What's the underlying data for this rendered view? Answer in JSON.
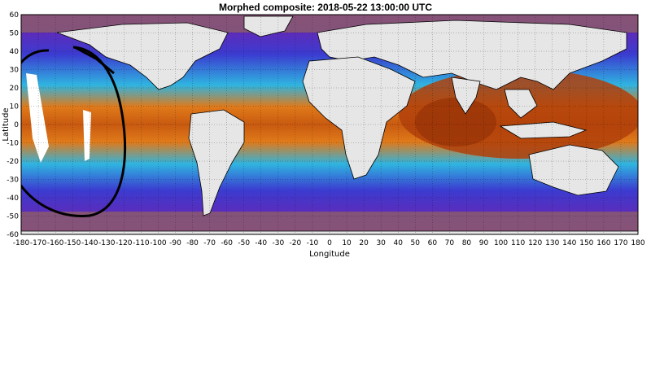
{
  "title": "Morphed composite: 2018-05-22 13:00:00 UTC",
  "xlabel": "Longitude",
  "ylabel": "Latitude",
  "x_ticks": [
    -180,
    -170,
    -160,
    -150,
    -140,
    -130,
    -120,
    -110,
    -100,
    -90,
    -80,
    -70,
    -60,
    -50,
    -40,
    -30,
    -20,
    -10,
    0,
    10,
    20,
    30,
    40,
    50,
    60,
    70,
    80,
    90,
    100,
    110,
    120,
    130,
    140,
    150,
    160,
    170,
    180
  ],
  "y_ticks": [
    60,
    50,
    40,
    30,
    20,
    10,
    0,
    -10,
    -20,
    -30,
    -40,
    -50,
    -60
  ],
  "xlim": [
    -180,
    180
  ],
  "ylim": [
    -60,
    60
  ],
  "colors": {
    "land": "#e6e6e6",
    "ocean_dry": "#8a5a6e",
    "ocean_moist": "#e07a1a",
    "ocean_very_moist": "#b0400a",
    "moderate": "#2fb4e0",
    "low": "#3b3bd0",
    "very_low": "#7a1fa8",
    "annotation": "#000000"
  }
}
